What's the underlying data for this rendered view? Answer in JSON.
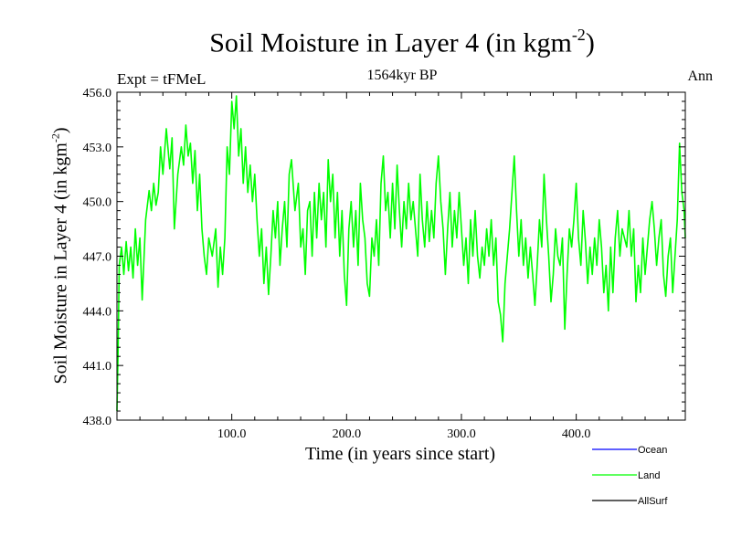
{
  "header": {
    "title_main": "Soil Moisture in Layer 4 (in kgm",
    "title_sup": "-2",
    "title_close": ")",
    "subtitle": "1564kyr BP",
    "expt": "Expt = tFMeL",
    "period": "Ann"
  },
  "chart_data": {
    "type": "line",
    "title": "Soil Moisture in Layer 4 (in kgm-2)",
    "xlabel": "Time (in years since start)",
    "ylabel": "Soil Moisture in Layer 4 (in kgm-2)",
    "xlim": [
      0,
      495
    ],
    "ylim": [
      438.0,
      456.0
    ],
    "x_ticks": [
      100,
      200,
      300,
      400
    ],
    "x_tick_labels": [
      "100.0",
      "200.0",
      "300.0",
      "400.0"
    ],
    "y_ticks": [
      438,
      441,
      444,
      447,
      450,
      453,
      456
    ],
    "y_tick_labels": [
      "438.0",
      "441.0",
      "444.0",
      "447.0",
      "450.0",
      "453.0",
      "456.0"
    ],
    "ylabel_parts": {
      "main": "Soil Moisture in Layer 4 (in kgm",
      "sup": "-2",
      "close": ")"
    },
    "series": [
      {
        "name": "Ocean",
        "color": "#0000ff",
        "x": [],
        "values": []
      },
      {
        "name": "Land",
        "color": "#00ff00",
        "x": [
          0,
          1,
          2,
          4,
          6,
          8,
          10,
          12,
          14,
          16,
          18,
          20,
          22,
          25,
          28,
          30,
          32,
          34,
          36,
          38,
          40,
          43,
          46,
          48,
          50,
          53,
          56,
          58,
          60,
          62,
          64,
          66,
          68,
          70,
          72,
          74,
          76,
          78,
          80,
          83,
          86,
          88,
          90,
          92,
          94,
          96,
          98,
          100,
          102,
          104,
          106,
          108,
          110,
          112,
          114,
          116,
          118,
          120,
          122,
          124,
          126,
          128,
          130,
          132,
          134,
          136,
          138,
          140,
          142,
          144,
          146,
          148,
          150,
          152,
          155,
          158,
          160,
          162,
          164,
          166,
          168,
          170,
          172,
          174,
          176,
          178,
          180,
          182,
          184,
          186,
          188,
          190,
          192,
          194,
          196,
          198,
          200,
          202,
          204,
          206,
          208,
          210,
          212,
          214,
          216,
          218,
          220,
          222,
          224,
          226,
          228,
          230,
          232,
          234,
          236,
          238,
          240,
          242,
          244,
          246,
          248,
          250,
          252,
          254,
          256,
          258,
          260,
          262,
          264,
          266,
          268,
          270,
          272,
          274,
          276,
          278,
          280,
          282,
          284,
          286,
          288,
          290,
          292,
          294,
          296,
          298,
          300,
          302,
          304,
          306,
          308,
          310,
          312,
          314,
          316,
          318,
          320,
          322,
          324,
          326,
          328,
          330,
          332,
          334,
          336,
          338,
          340,
          342,
          344,
          346,
          348,
          350,
          352,
          354,
          356,
          358,
          360,
          362,
          364,
          366,
          368,
          370,
          372,
          374,
          376,
          378,
          380,
          382,
          384,
          386,
          388,
          390,
          392,
          394,
          396,
          398,
          400,
          402,
          404,
          406,
          408,
          410,
          412,
          414,
          416,
          418,
          420,
          422,
          424,
          426,
          428,
          430,
          432,
          434,
          436,
          438,
          440,
          442,
          444,
          446,
          448,
          450,
          452,
          454,
          456,
          458,
          460,
          462,
          464,
          466,
          468,
          470,
          472,
          474,
          476,
          478,
          480,
          482,
          484,
          486,
          488,
          490,
          492,
          494,
          495
        ],
        "values": [
          438.5,
          442.0,
          446.5,
          447.5,
          446.0,
          447.8,
          446.2,
          447.5,
          445.8,
          448.5,
          446.5,
          448.0,
          444.6,
          449.0,
          450.6,
          449.5,
          451.0,
          449.8,
          450.5,
          453.0,
          451.5,
          454.0,
          451.8,
          453.5,
          448.5,
          451.5,
          453.0,
          452.0,
          454.2,
          452.5,
          453.2,
          451.0,
          452.8,
          449.5,
          451.5,
          448.5,
          447.0,
          446.0,
          448.0,
          447.0,
          448.5,
          445.3,
          447.5,
          446.0,
          448.0,
          453.0,
          451.5,
          455.5,
          454.0,
          455.8,
          452.5,
          454.0,
          451.0,
          453.0,
          450.5,
          452.0,
          450.0,
          451.5,
          449.0,
          447.0,
          448.5,
          445.5,
          447.5,
          444.9,
          447.0,
          449.5,
          448.0,
          450.0,
          446.5,
          448.5,
          450.0,
          447.5,
          451.5,
          452.3,
          449.5,
          451.0,
          447.5,
          448.5,
          446.0,
          449.5,
          450.0,
          447.0,
          450.5,
          448.0,
          451.0,
          449.0,
          450.5,
          447.5,
          452.3,
          450.0,
          451.5,
          448.0,
          450.5,
          447.0,
          449.5,
          446.0,
          444.3,
          448.5,
          450.0,
          447.5,
          449.5,
          446.5,
          451.0,
          449.0,
          448.0,
          445.5,
          444.8,
          448.0,
          447.0,
          449.0,
          446.5,
          451.0,
          452.5,
          449.5,
          450.5,
          448.0,
          451.0,
          448.5,
          452.0,
          449.5,
          447.5,
          450.0,
          448.5,
          451.0,
          449.0,
          450.0,
          448.5,
          447.0,
          451.5,
          449.0,
          447.5,
          450.0,
          447.8,
          449.5,
          448.0,
          451.0,
          452.5,
          450.0,
          448.5,
          446.0,
          448.5,
          450.5,
          447.5,
          449.5,
          448.0,
          450.5,
          448.5,
          446.5,
          448.0,
          445.5,
          449.0,
          447.0,
          449.5,
          447.0,
          445.8,
          447.5,
          446.5,
          448.5,
          447.0,
          449.0,
          446.5,
          448.0,
          444.5,
          443.8,
          442.3,
          445.5,
          447.0,
          448.5,
          450.5,
          452.5,
          449.5,
          447.0,
          449.0,
          446.5,
          448.0,
          445.8,
          447.5,
          446.0,
          444.3,
          446.5,
          449.0,
          447.5,
          451.5,
          449.0,
          447.0,
          444.5,
          446.0,
          448.5,
          447.0,
          446.5,
          448.0,
          443.0,
          446.0,
          448.5,
          447.5,
          449.0,
          451.0,
          448.0,
          446.5,
          449.5,
          447.8,
          445.5,
          447.5,
          446.0,
          448.0,
          446.5,
          449.0,
          447.5,
          445.0,
          446.5,
          444.0,
          447.5,
          445.0,
          448.0,
          449.5,
          447.0,
          448.5,
          448.0,
          447.5,
          449.5,
          447.0,
          448.5,
          444.5,
          446.5,
          445.0,
          448.0,
          446.0,
          447.5,
          449.0,
          450.0,
          448.5,
          446.5,
          448.0,
          449.0,
          446.0,
          444.8,
          447.0,
          448.0,
          445.0,
          447.0,
          449.0,
          453.2,
          450.5,
          449.5,
          448.0
        ]
      },
      {
        "name": "AllSurf",
        "color": "#000000",
        "x": [],
        "values": []
      }
    ],
    "legend_position": "bottom-right"
  }
}
